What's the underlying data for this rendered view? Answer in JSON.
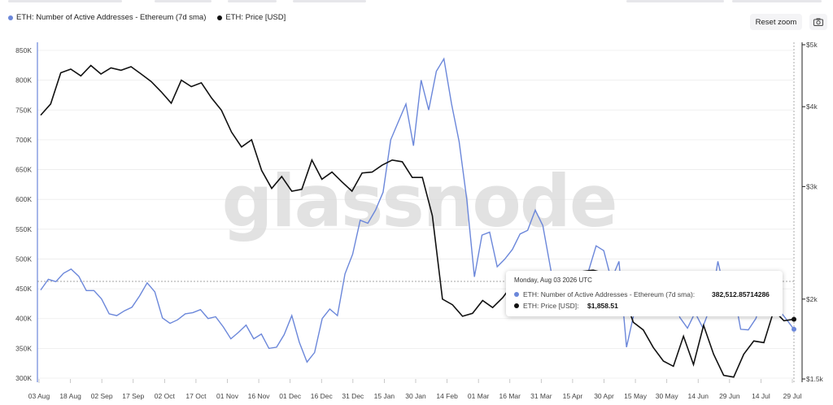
{
  "legend": {
    "series1": "ETH: Number of Active Addresses - Ethereum (7d sma)",
    "series2": "ETH: Price [USD]"
  },
  "toolbar": {
    "reset_zoom": "Reset zoom",
    "camera_icon": "camera-icon"
  },
  "watermark": "glassnode",
  "colors": {
    "series1": "#6b87da",
    "series2": "#111111",
    "grid": "#ececec"
  },
  "tooltip": {
    "date": "Monday, Aug 03 2026 UTC",
    "row1_label": "ETH: Number of Active Addresses - Ethereum (7d sma):",
    "row1_value": "382,512.85714286",
    "row2_label": "ETH: Price [USD]:",
    "row2_value": "$1,858.51"
  },
  "chart_data": {
    "type": "line",
    "x_labels": [
      "03 Aug",
      "18 Aug",
      "02 Sep",
      "17 Sep",
      "02 Oct",
      "17 Oct",
      "01 Nov",
      "16 Nov",
      "01 Dec",
      "16 Dec",
      "31 Dec",
      "15 Jan",
      "30 Jan",
      "14 Feb",
      "01 Mar",
      "16 Mar",
      "31 Mar",
      "15 Apr",
      "30 Apr",
      "15 May",
      "30 May",
      "14 Jun",
      "29 Jun",
      "14 Jul",
      "29 Jul"
    ],
    "y_left": {
      "ticks": [
        "850K",
        "800K",
        "750K",
        "700K",
        "650K",
        "600K",
        "550K",
        "500K",
        "450K",
        "400K",
        "350K",
        "300K"
      ],
      "ylim": [
        300000,
        850000
      ]
    },
    "y_right": {
      "scale": "log",
      "ticks": [
        "$5k",
        "$4k",
        "$3k",
        "$2k",
        "$1.5k"
      ],
      "tick_values": [
        5000,
        4000,
        3000,
        2000,
        1500
      ]
    },
    "series": [
      {
        "name": "ETH: Number of Active Addresses - Ethereum (7d sma)",
        "axis": "left",
        "values": [
          448000,
          466000,
          462000,
          476000,
          483000,
          471000,
          447000,
          447000,
          433000,
          408000,
          405000,
          413000,
          419000,
          438000,
          460000,
          445000,
          401000,
          392000,
          398000,
          408000,
          410000,
          415000,
          400000,
          403000,
          386000,
          366000,
          377000,
          389000,
          366000,
          374000,
          350000,
          352000,
          373000,
          405000,
          360000,
          327000,
          343000,
          400000,
          416000,
          405000,
          475000,
          508000,
          565000,
          560000,
          582000,
          612000,
          700000,
          730000,
          760000,
          690000,
          800000,
          750000,
          815000,
          836000,
          760000,
          697000,
          600000,
          470000,
          540000,
          545000,
          487000,
          500000,
          516000,
          542000,
          548000,
          582000,
          556000,
          485000,
          413000,
          437000,
          472000,
          443000,
          480000,
          522000,
          514000,
          465000,
          496000,
          352000,
          410000,
          473000,
          446000,
          454000,
          472000,
          441000,
          402000,
          384000,
          410000,
          385000,
          419000,
          496000,
          440000,
          451000,
          382000,
          381000,
          400000,
          441000,
          462000,
          415000,
          399000,
          382000
        ]
      },
      {
        "name": "ETH: Price [USD]",
        "axis": "right",
        "values": [
          3880,
          4040,
          4520,
          4580,
          4470,
          4640,
          4500,
          4600,
          4560,
          4620,
          4500,
          4380,
          4220,
          4050,
          4400,
          4300,
          4360,
          4130,
          3950,
          3650,
          3460,
          3550,
          3180,
          2980,
          3110,
          2950,
          2970,
          3300,
          3080,
          3160,
          3050,
          2950,
          3150,
          3160,
          3240,
          3300,
          3280,
          3100,
          3100,
          2700,
          2000,
          1960,
          1880,
          1900,
          1990,
          1940,
          2010,
          2110,
          2120,
          2120,
          2170,
          2130,
          2130,
          2160,
          2210,
          2220,
          2200,
          2190,
          2040,
          1840,
          1790,
          1680,
          1600,
          1570,
          1750,
          1580,
          1820,
          1640,
          1520,
          1510,
          1640,
          1720,
          1710,
          1920,
          1850,
          1860
        ]
      }
    ]
  }
}
